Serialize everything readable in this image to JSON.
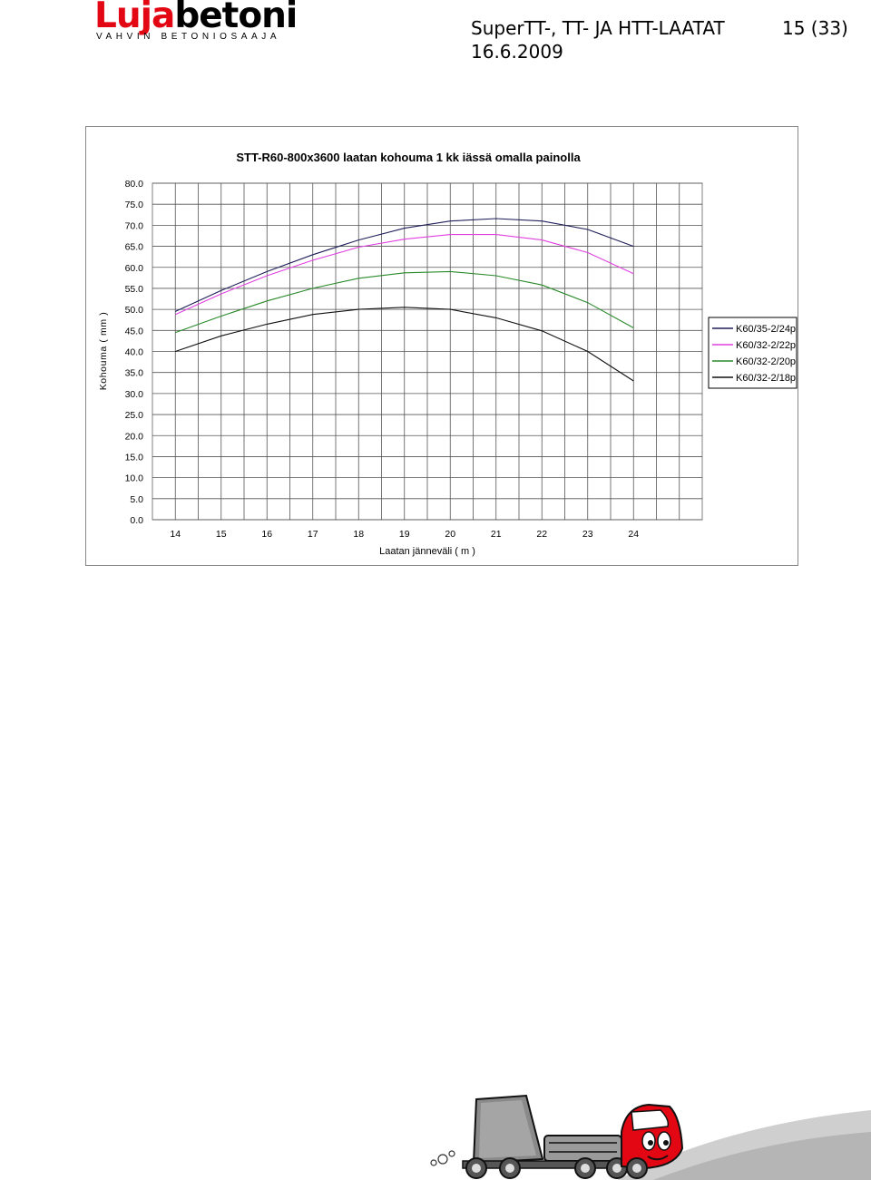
{
  "header": {
    "logo_text_part1": "Luja",
    "logo_text_part2": "betoni",
    "logo_tagline": "VAHVIN BETONIOSAAJA",
    "title": "SuperTT-, TT- JA HTT-LAATAT",
    "date": "16.6.2009",
    "page": "15 (33)"
  },
  "chart_data": {
    "type": "line",
    "title": "STT-R60-800x3600 laatan kohouma 1 kk iässä omalla painolla",
    "xlabel": "Laatan jänneväli ( m )",
    "ylabel": "Kohouma ( mm )",
    "xlim": [
      14,
      24
    ],
    "ylim": [
      0,
      80
    ],
    "x_ticks": [
      "14",
      "15",
      "16",
      "17",
      "18",
      "19",
      "20",
      "21",
      "22",
      "23",
      "24"
    ],
    "y_ticks": [
      "0.0",
      "5.0",
      "10.0",
      "15.0",
      "20.0",
      "25.0",
      "30.0",
      "35.0",
      "40.0",
      "45.0",
      "50.0",
      "55.0",
      "60.0",
      "65.0",
      "70.0",
      "75.0",
      "80.0"
    ],
    "grid": true,
    "legend_position": "right",
    "x": [
      14,
      15,
      16,
      17,
      18,
      19,
      20,
      21,
      22,
      23,
      24
    ],
    "series": [
      {
        "name": "K60/35-2/24p",
        "color": "#1f1f5a",
        "values": [
          49.5,
          54.5,
          59.0,
          63.0,
          66.5,
          69.3,
          71.0,
          71.6,
          71.0,
          69.0,
          65.0
        ]
      },
      {
        "name": "K60/32-2/22p",
        "color": "#e040e0",
        "values": [
          48.8,
          53.7,
          58.0,
          61.7,
          64.8,
          66.7,
          67.8,
          67.8,
          66.5,
          63.5,
          58.5
        ]
      },
      {
        "name": "K60/32-2/20p",
        "color": "#2a8a2a",
        "values": [
          44.5,
          48.4,
          52.0,
          55.0,
          57.4,
          58.7,
          59.0,
          58.0,
          55.8,
          51.6,
          45.6
        ]
      },
      {
        "name": "K60/32-2/18p",
        "color": "#111111",
        "values": [
          40.0,
          43.7,
          46.5,
          48.8,
          50.0,
          50.5,
          50.0,
          48.0,
          44.9,
          40.0,
          33.0
        ]
      }
    ]
  },
  "footer": {
    "illustration": "truck-mascot-illustration"
  }
}
